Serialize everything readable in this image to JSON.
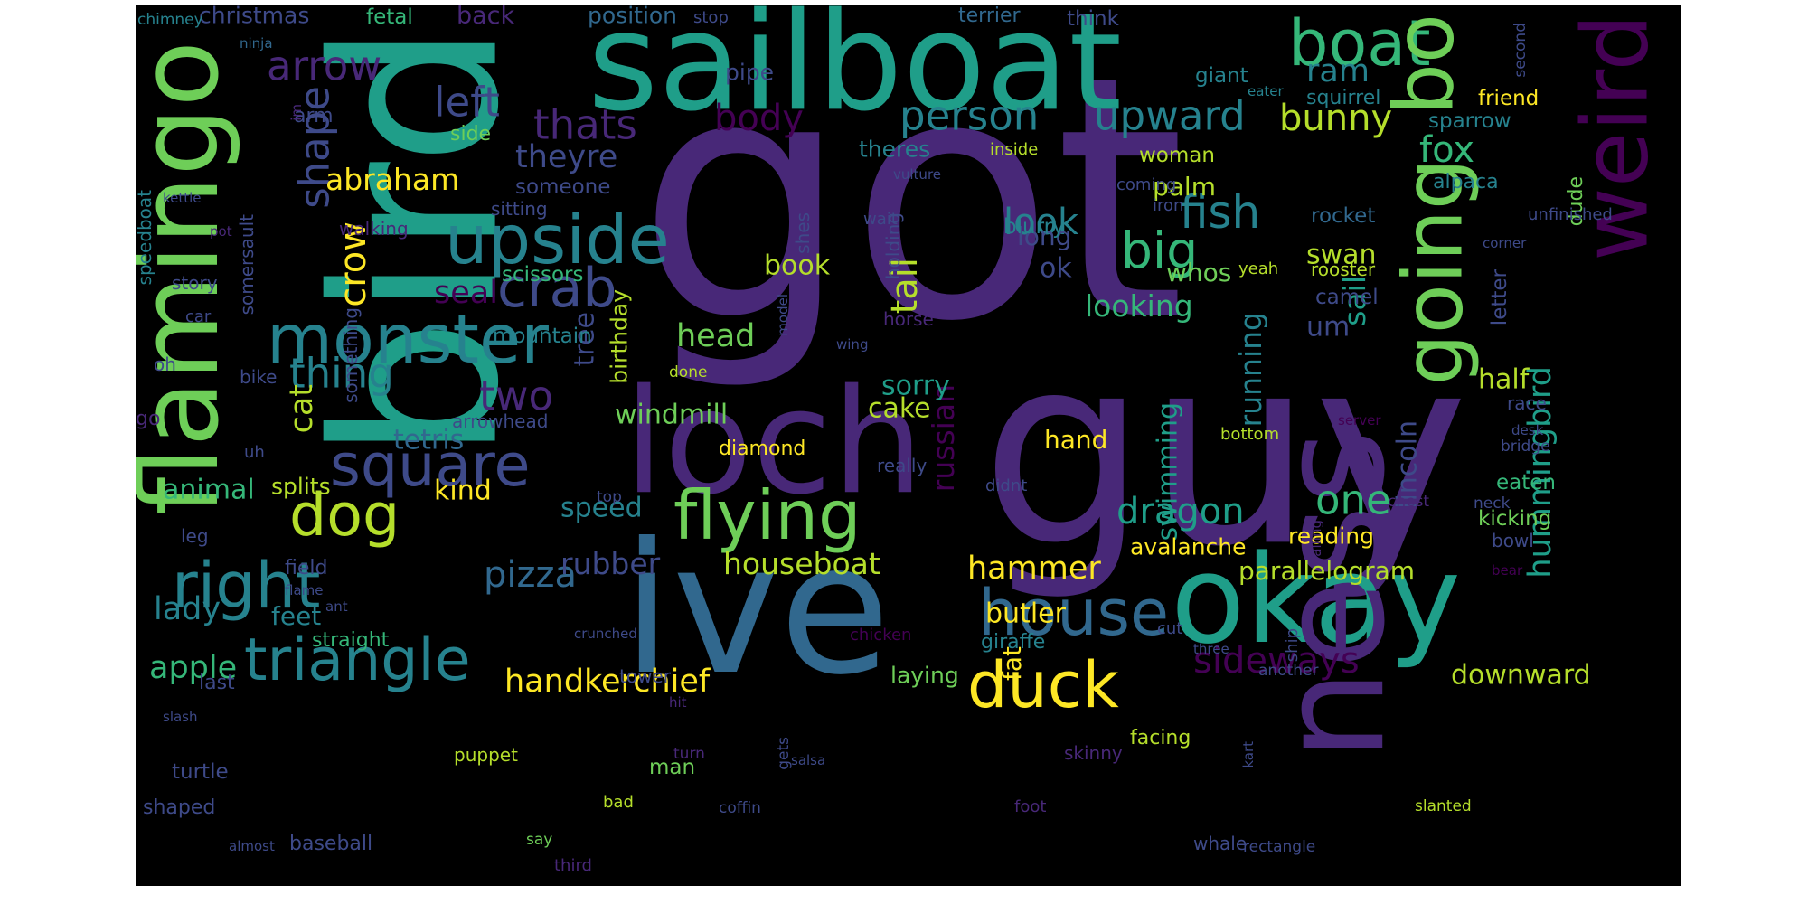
{
  "palette": [
    "#440154",
    "#482878",
    "#3e4a89",
    "#31688e",
    "#26828e",
    "#1f9e89",
    "#35b779",
    "#6ece58",
    "#b5de2b",
    "#fde725"
  ],
  "words": [
    {
      "text": "got",
      "color": "#482878"
    },
    {
      "text": "guy",
      "color": "#482878"
    },
    {
      "text": "bird",
      "color": "#1f9e89"
    },
    {
      "text": "ive",
      "color": "#31688e"
    },
    {
      "text": "sailboat",
      "color": "#1f9e89"
    },
    {
      "text": "flamingo",
      "color": "#6ece58"
    },
    {
      "text": "loch",
      "color": "#482878"
    },
    {
      "text": "okay",
      "color": "#1f9e89"
    },
    {
      "text": "ness",
      "color": "#482878"
    },
    {
      "text": "going",
      "color": "#6ece58"
    },
    {
      "text": "weird",
      "color": "#440154"
    },
    {
      "text": "boat",
      "color": "#35b779"
    },
    {
      "text": "bo",
      "color": "#6ece58"
    },
    {
      "text": "monster",
      "color": "#26828e"
    },
    {
      "text": "upside",
      "color": "#26828e"
    },
    {
      "text": "triangle",
      "color": "#26828e"
    },
    {
      "text": "flying",
      "color": "#6ece58"
    },
    {
      "text": "house",
      "color": "#31688e"
    },
    {
      "text": "duck",
      "color": "#fde725"
    },
    {
      "text": "right",
      "color": "#26828e"
    },
    {
      "text": "dog",
      "color": "#b5de2b"
    },
    {
      "text": "square",
      "color": "#3e4a89"
    },
    {
      "text": "crab",
      "color": "#3e4a89"
    },
    {
      "text": "big",
      "color": "#35b779"
    },
    {
      "text": "fish",
      "color": "#26828e"
    },
    {
      "text": "arrow",
      "color": "#482878"
    },
    {
      "text": "person",
      "color": "#26828e"
    },
    {
      "text": "upward",
      "color": "#26828e"
    },
    {
      "text": "shape",
      "color": "#3e4a89"
    },
    {
      "text": "left",
      "color": "#3e4a89"
    },
    {
      "text": "thats",
      "color": "#482878"
    },
    {
      "text": "body",
      "color": "#440154"
    },
    {
      "text": "bunny",
      "color": "#b5de2b"
    },
    {
      "text": "crow",
      "color": "#fde725"
    },
    {
      "text": "thing",
      "color": "#26828e"
    },
    {
      "text": "two",
      "color": "#482878"
    },
    {
      "text": "abraham",
      "color": "#fde725"
    },
    {
      "text": "theyre",
      "color": "#3e4a89"
    },
    {
      "text": "look",
      "color": "#26828e"
    },
    {
      "text": "tail",
      "color": "#b5de2b"
    },
    {
      "text": "fox",
      "color": "#35b779"
    },
    {
      "text": "dragon",
      "color": "#1f9e89"
    },
    {
      "text": "one",
      "color": "#35b779"
    },
    {
      "text": "hummingbird",
      "color": "#1f9e89"
    },
    {
      "text": "pizza",
      "color": "#31688e"
    },
    {
      "text": "apple",
      "color": "#35b779"
    },
    {
      "text": "handkerchief",
      "color": "#fde725"
    },
    {
      "text": "hammer",
      "color": "#fde725"
    },
    {
      "text": "houseboat",
      "color": "#b5de2b"
    },
    {
      "text": "rubber",
      "color": "#3e4a89"
    },
    {
      "text": "sideways",
      "color": "#440154"
    },
    {
      "text": "running",
      "color": "#26828e"
    },
    {
      "text": "russian",
      "color": "#440154"
    },
    {
      "text": "windmill",
      "color": "#6ece58"
    },
    {
      "text": "head",
      "color": "#6ece58"
    },
    {
      "text": "cat",
      "color": "#b5de2b"
    },
    {
      "text": "kind",
      "color": "#fde725"
    },
    {
      "text": "animal",
      "color": "#35b779"
    },
    {
      "text": "lady",
      "color": "#26828e"
    },
    {
      "text": "feet",
      "color": "#26828e"
    },
    {
      "text": "seal",
      "color": "#440154"
    },
    {
      "text": "tree",
      "color": "#3e4a89"
    },
    {
      "text": "birthday",
      "color": "#b5de2b"
    },
    {
      "text": "half",
      "color": "#b5de2b"
    },
    {
      "text": "sail",
      "color": "#1f9e89"
    },
    {
      "text": "swimming",
      "color": "#1f9e89"
    },
    {
      "text": "lincoln",
      "color": "#3e4a89"
    },
    {
      "text": "downward",
      "color": "#b5de2b"
    },
    {
      "text": "parallelogram",
      "color": "#b5de2b"
    },
    {
      "text": "ok",
      "color": "#3e4a89"
    },
    {
      "text": "whos",
      "color": "#6ece58"
    },
    {
      "text": "swan",
      "color": "#b5de2b"
    },
    {
      "text": "palm",
      "color": "#b5de2b"
    },
    {
      "text": "looking",
      "color": "#35b779"
    },
    {
      "text": "ram",
      "color": "#26828e"
    },
    {
      "text": "um",
      "color": "#3e4a89"
    },
    {
      "text": "sorry",
      "color": "#1f9e89"
    },
    {
      "text": "cake",
      "color": "#b5de2b"
    },
    {
      "text": "fat",
      "color": "#fde725"
    },
    {
      "text": "book",
      "color": "#b5de2b"
    },
    {
      "text": "long",
      "color": "#3e4a89"
    },
    {
      "text": "tetris",
      "color": "#31688e"
    },
    {
      "text": "hand",
      "color": "#fde725"
    },
    {
      "text": "speed",
      "color": "#26828e"
    },
    {
      "text": "butler",
      "color": "#fde725"
    },
    {
      "text": "avalanche",
      "color": "#fde725"
    },
    {
      "text": "reading",
      "color": "#fde725"
    },
    {
      "text": "eaten",
      "color": "#35b779"
    },
    {
      "text": "laying",
      "color": "#6ece58"
    },
    {
      "text": "christmas",
      "color": "#3e4a89"
    },
    {
      "text": "fetal",
      "color": "#35b779"
    },
    {
      "text": "back",
      "color": "#482878"
    },
    {
      "text": "position",
      "color": "#31688e"
    },
    {
      "text": "stop",
      "color": "#3e4a89"
    },
    {
      "text": "terrier",
      "color": "#31688e"
    },
    {
      "text": "think",
      "color": "#3e4a89"
    },
    {
      "text": "chimney",
      "color": "#26828e"
    },
    {
      "text": "ninja",
      "color": "#31688e"
    },
    {
      "text": "pipe",
      "color": "#3e4a89"
    },
    {
      "text": "giant",
      "color": "#26828e"
    },
    {
      "text": "squirrel",
      "color": "#26828e"
    },
    {
      "text": "eater",
      "color": "#26828e"
    },
    {
      "text": "friend",
      "color": "#fde725"
    },
    {
      "text": "second",
      "color": "#3e4a89"
    },
    {
      "text": "sparrow",
      "color": "#26828e"
    },
    {
      "text": "arm",
      "color": "#3e4a89"
    },
    {
      "text": "side",
      "color": "#6ece58"
    },
    {
      "text": "im",
      "color": "#482878"
    },
    {
      "text": "theres",
      "color": "#26828e"
    },
    {
      "text": "inside",
      "color": "#b5de2b"
    },
    {
      "text": "woman",
      "color": "#b5de2b"
    },
    {
      "text": "someone",
      "color": "#3e4a89"
    },
    {
      "text": "vulture",
      "color": "#3e4a89"
    },
    {
      "text": "coming",
      "color": "#3e4a89"
    },
    {
      "text": "alpaca",
      "color": "#26828e"
    },
    {
      "text": "dude",
      "color": "#6ece58"
    },
    {
      "text": "kettle",
      "color": "#3e4a89"
    },
    {
      "text": "speedboat",
      "color": "#26828e"
    },
    {
      "text": "pot",
      "color": "#482878"
    },
    {
      "text": "sitting",
      "color": "#3e4a89"
    },
    {
      "text": "walking",
      "color": "#482878"
    },
    {
      "text": "blurry",
      "color": "#26828e"
    },
    {
      "text": "iron",
      "color": "#3e4a89"
    },
    {
      "text": "wait",
      "color": "#3e4a89"
    },
    {
      "text": "shes",
      "color": "#3e4a89"
    },
    {
      "text": "holding",
      "color": "#3e4a89"
    },
    {
      "text": "rocket",
      "color": "#31688e"
    },
    {
      "text": "corner",
      "color": "#3e4a89"
    },
    {
      "text": "unfinished",
      "color": "#3e4a89"
    },
    {
      "text": "scissors",
      "color": "#35b779"
    },
    {
      "text": "story",
      "color": "#3e4a89"
    },
    {
      "text": "yeah",
      "color": "#b5de2b"
    },
    {
      "text": "rooster",
      "color": "#b5de2b"
    },
    {
      "text": "camel",
      "color": "#3e4a89"
    },
    {
      "text": "letter",
      "color": "#3e4a89"
    },
    {
      "text": "horse",
      "color": "#482878"
    },
    {
      "text": "somersault",
      "color": "#3e4a89"
    },
    {
      "text": "something",
      "color": "#3e4a89"
    },
    {
      "text": "mountain",
      "color": "#26828e"
    },
    {
      "text": "car",
      "color": "#3e4a89"
    },
    {
      "text": "oh",
      "color": "#3e4a89"
    },
    {
      "text": "model",
      "color": "#3e4a89"
    },
    {
      "text": "wing",
      "color": "#3e4a89"
    },
    {
      "text": "done",
      "color": "#b5de2b"
    },
    {
      "text": "bike",
      "color": "#3e4a89"
    },
    {
      "text": "go",
      "color": "#482878"
    },
    {
      "text": "arrowhead",
      "color": "#3e4a89"
    },
    {
      "text": "diamond",
      "color": "#fde725"
    },
    {
      "text": "bottom",
      "color": "#b5de2b"
    },
    {
      "text": "race",
      "color": "#3e4a89"
    },
    {
      "text": "server",
      "color": "#440154"
    },
    {
      "text": "desk",
      "color": "#3e4a89"
    },
    {
      "text": "bridge",
      "color": "#3e4a89"
    },
    {
      "text": "uh",
      "color": "#3e4a89"
    },
    {
      "text": "splits",
      "color": "#b5de2b"
    },
    {
      "text": "really",
      "color": "#3e4a89"
    },
    {
      "text": "didnt",
      "color": "#3e4a89"
    },
    {
      "text": "chest",
      "color": "#482878"
    },
    {
      "text": "top",
      "color": "#3e4a89"
    },
    {
      "text": "neck",
      "color": "#3e4a89"
    },
    {
      "text": "kicking",
      "color": "#6ece58"
    },
    {
      "text": "bowl",
      "color": "#3e4a89"
    },
    {
      "text": "leg",
      "color": "#3e4a89"
    },
    {
      "text": "field",
      "color": "#3e4a89"
    },
    {
      "text": "flame",
      "color": "#3e4a89"
    },
    {
      "text": "ant",
      "color": "#3e4a89"
    },
    {
      "text": "falling",
      "color": "#482878"
    },
    {
      "text": "bear",
      "color": "#440154"
    },
    {
      "text": "straight",
      "color": "#35b779"
    },
    {
      "text": "crunched",
      "color": "#3e4a89"
    },
    {
      "text": "chicken",
      "color": "#440154"
    },
    {
      "text": "cut",
      "color": "#3e4a89"
    },
    {
      "text": "three",
      "color": "#3e4a89"
    },
    {
      "text": "giraffe",
      "color": "#26828e"
    },
    {
      "text": "ship",
      "color": "#3e4a89"
    },
    {
      "text": "another",
      "color": "#3e4a89"
    },
    {
      "text": "last",
      "color": "#3e4a89"
    },
    {
      "text": "tower",
      "color": "#3e4a89"
    },
    {
      "text": "slash",
      "color": "#3e4a89"
    },
    {
      "text": "hit",
      "color": "#482878"
    },
    {
      "text": "facing",
      "color": "#b5de2b"
    },
    {
      "text": "turtle",
      "color": "#3e4a89"
    },
    {
      "text": "puppet",
      "color": "#b5de2b"
    },
    {
      "text": "turn",
      "color": "#482878"
    },
    {
      "text": "gets",
      "color": "#3e4a89"
    },
    {
      "text": "salsa",
      "color": "#3e4a89"
    },
    {
      "text": "skinny",
      "color": "#482878"
    },
    {
      "text": "kart",
      "color": "#3e4a89"
    },
    {
      "text": "man",
      "color": "#6ece58"
    },
    {
      "text": "shaped",
      "color": "#3e4a89"
    },
    {
      "text": "bad",
      "color": "#b5de2b"
    },
    {
      "text": "coffin",
      "color": "#3e4a89"
    },
    {
      "text": "foot",
      "color": "#482878"
    },
    {
      "text": "slanted",
      "color": "#b5de2b"
    },
    {
      "text": "almost",
      "color": "#3e4a89"
    },
    {
      "text": "baseball",
      "color": "#3e4a89"
    },
    {
      "text": "say",
      "color": "#6ece58"
    },
    {
      "text": "third",
      "color": "#482878"
    },
    {
      "text": "whale",
      "color": "#3e4a89"
    },
    {
      "text": "rectangle",
      "color": "#3e4a89"
    }
  ]
}
